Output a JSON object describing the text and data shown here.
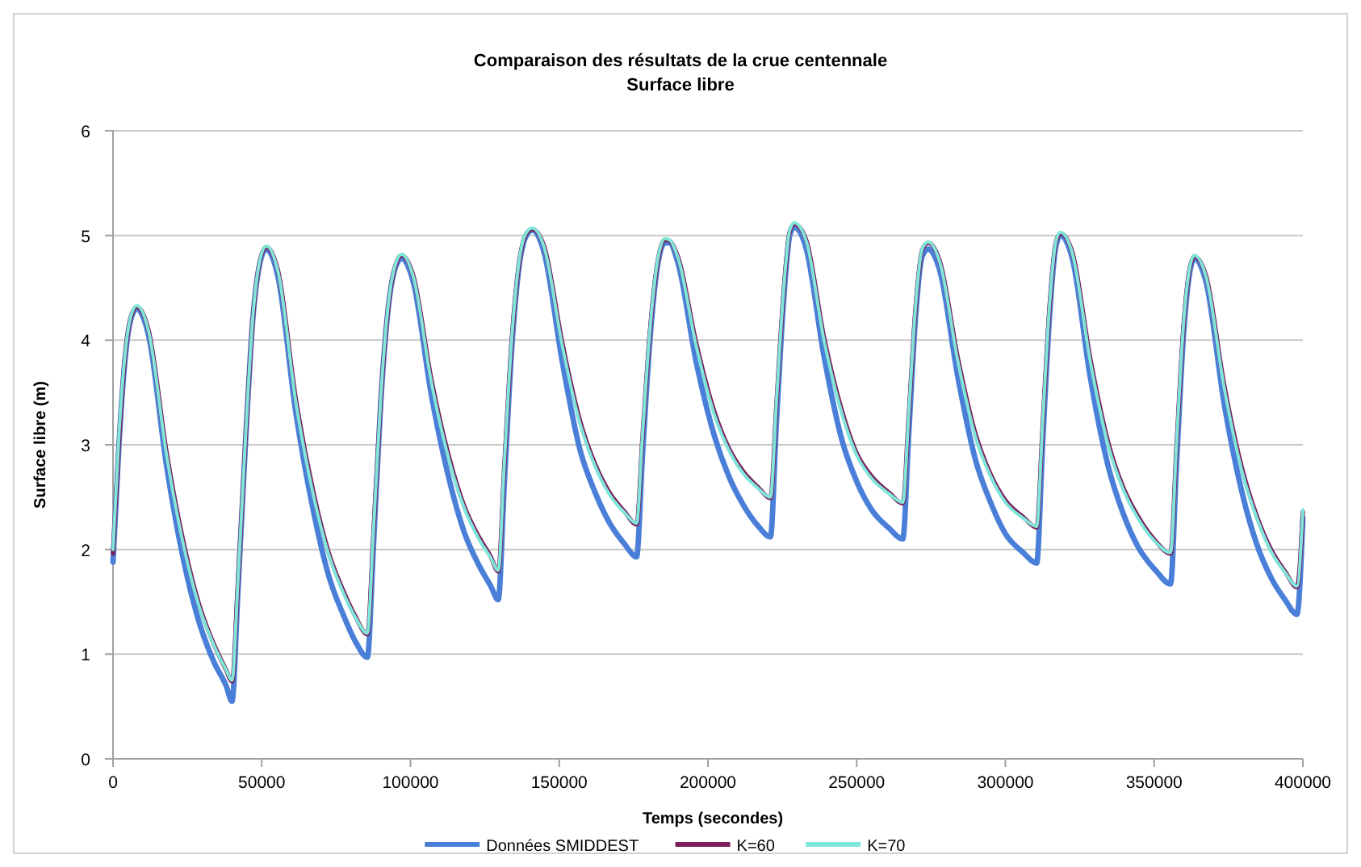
{
  "chart_data": {
    "type": "line",
    "title": "Comparaison  des résultats de la crue centennale",
    "subtitle": "Surface libre",
    "xlabel": "Temps (secondes)",
    "ylabel": "Surface libre (m)",
    "xlim": [
      0,
      400000
    ],
    "xticks": [
      0,
      50000,
      100000,
      150000,
      200000,
      250000,
      300000,
      350000,
      400000
    ],
    "ylim": [
      0,
      6
    ],
    "yticks": [
      0,
      1,
      2,
      3,
      4,
      5,
      6
    ],
    "grid": "y",
    "legend": "bottom",
    "marker": "none",
    "line_style": "solid",
    "x": [
      0,
      2000,
      4000,
      6000,
      8000,
      12000,
      18000,
      24000,
      29000,
      34000,
      38000,
      40000,
      42000,
      44500,
      47000,
      49500,
      51500,
      55500,
      61500,
      67500,
      72500,
      77500,
      81500,
      85500,
      87500,
      90000,
      92500,
      95000,
      97000,
      101000,
      107000,
      113000,
      118000,
      123000,
      127000,
      129500,
      131500,
      134000,
      136500,
      139000,
      141000,
      145000,
      151000,
      157000,
      162000,
      167000,
      172000,
      176000,
      178000,
      180500,
      183000,
      185500,
      187000,
      190000,
      196000,
      202000,
      207000,
      212000,
      217000,
      221000,
      223000,
      225500,
      227500,
      229000,
      233000,
      239000,
      245000,
      250000,
      255000,
      261000,
      265500,
      267500,
      270000,
      272000,
      274000,
      278000,
      284000,
      290000,
      295000,
      300000,
      306000,
      310500,
      312500,
      315000,
      317000,
      318500,
      322500,
      328500,
      334500,
      339500,
      344500,
      350500,
      355500,
      357500,
      360000,
      362000,
      363500,
      367500,
      373500,
      379500,
      384500,
      389500,
      394000,
      398000,
      400000
    ],
    "series": [
      {
        "name": "Données SMIDDEST",
        "color": "#4a7fd9",
        "values": [
          1.88,
          3.0,
          3.8,
          4.2,
          4.3,
          4.04,
          2.8,
          1.86,
          1.3,
          0.92,
          0.7,
          0.55,
          1.6,
          3.0,
          4.2,
          4.75,
          4.87,
          4.6,
          3.3,
          2.35,
          1.75,
          1.37,
          1.12,
          0.97,
          2.0,
          3.4,
          4.3,
          4.7,
          4.78,
          4.55,
          3.48,
          2.67,
          2.17,
          1.85,
          1.65,
          1.52,
          2.6,
          3.9,
          4.7,
          5.0,
          5.05,
          4.83,
          3.8,
          2.95,
          2.55,
          2.25,
          2.05,
          1.93,
          2.9,
          4.0,
          4.7,
          4.93,
          4.93,
          4.73,
          3.8,
          3.1,
          2.7,
          2.42,
          2.22,
          2.12,
          3.2,
          4.4,
          5.0,
          5.08,
          4.88,
          3.85,
          3.05,
          2.65,
          2.38,
          2.2,
          2.1,
          3.1,
          4.3,
          4.8,
          4.87,
          4.66,
          3.65,
          2.85,
          2.45,
          2.15,
          1.97,
          1.87,
          3.0,
          4.3,
          4.9,
          5.0,
          4.78,
          3.65,
          2.8,
          2.35,
          2.03,
          1.8,
          1.67,
          2.8,
          4.1,
          4.65,
          4.78,
          4.55,
          3.4,
          2.55,
          2.05,
          1.72,
          1.52,
          1.38,
          2.3
        ]
      },
      {
        "name": "K=60",
        "color": "#7a1f5c",
        "values": [
          1.96,
          3.03,
          3.83,
          4.22,
          4.32,
          4.09,
          2.93,
          2.03,
          1.47,
          1.09,
          0.85,
          0.74,
          1.68,
          3.03,
          4.2,
          4.77,
          4.89,
          4.66,
          3.43,
          2.53,
          1.97,
          1.6,
          1.36,
          1.19,
          2.13,
          3.43,
          4.31,
          4.72,
          4.81,
          4.61,
          3.63,
          2.88,
          2.42,
          2.12,
          1.93,
          1.79,
          2.78,
          3.98,
          4.73,
          5.02,
          5.06,
          4.89,
          3.98,
          3.23,
          2.82,
          2.54,
          2.36,
          2.24,
          3.08,
          4.08,
          4.73,
          4.96,
          4.95,
          4.79,
          3.98,
          3.33,
          2.97,
          2.74,
          2.59,
          2.49,
          3.38,
          4.48,
          5.04,
          5.11,
          4.96,
          4.03,
          3.33,
          2.92,
          2.7,
          2.54,
          2.44,
          3.28,
          4.38,
          4.86,
          4.93,
          4.75,
          3.83,
          3.1,
          2.72,
          2.47,
          2.31,
          2.21,
          3.18,
          4.38,
          4.94,
          5.02,
          4.84,
          3.83,
          3.03,
          2.6,
          2.32,
          2.08,
          1.96,
          2.98,
          4.18,
          4.69,
          4.8,
          4.61,
          3.58,
          2.78,
          2.32,
          1.99,
          1.79,
          1.64,
          2.36
        ]
      },
      {
        "name": "K=70",
        "color": "#7fe6d9",
        "values": [
          2.0,
          3.1,
          3.85,
          4.23,
          4.33,
          4.08,
          2.9,
          2.0,
          1.45,
          1.08,
          0.85,
          0.75,
          1.7,
          3.05,
          4.22,
          4.78,
          4.9,
          4.65,
          3.4,
          2.5,
          1.95,
          1.58,
          1.35,
          1.2,
          2.15,
          3.45,
          4.33,
          4.73,
          4.82,
          4.6,
          3.6,
          2.85,
          2.4,
          2.1,
          1.92,
          1.8,
          2.8,
          4.0,
          4.75,
          5.03,
          5.07,
          4.88,
          3.95,
          3.2,
          2.8,
          2.52,
          2.35,
          2.25,
          3.1,
          4.1,
          4.75,
          4.97,
          4.96,
          4.78,
          3.95,
          3.3,
          2.95,
          2.72,
          2.58,
          2.5,
          3.4,
          4.5,
          5.05,
          5.12,
          4.95,
          4.0,
          3.3,
          2.9,
          2.68,
          2.53,
          2.45,
          3.3,
          4.4,
          4.87,
          4.94,
          4.74,
          3.8,
          3.07,
          2.7,
          2.45,
          2.3,
          2.22,
          3.2,
          4.4,
          4.95,
          5.03,
          4.83,
          3.8,
          3.0,
          2.58,
          2.3,
          2.07,
          1.97,
          3.0,
          4.2,
          4.7,
          4.81,
          4.6,
          3.55,
          2.75,
          2.3,
          1.97,
          1.78,
          1.65,
          2.38
        ]
      }
    ]
  }
}
